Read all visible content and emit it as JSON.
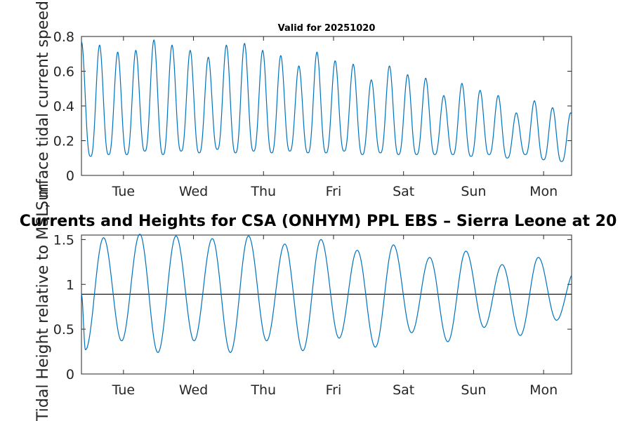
{
  "chart_data": [
    {
      "type": "line",
      "title": "Valid for 20251020",
      "xlabel": "",
      "ylabel": "Surface tidal current speed, kn",
      "x_range_days": [
        -0.6,
        6.4
      ],
      "ylim": [
        0,
        0.8
      ],
      "yticks": [
        "0",
        "0.2",
        "0.4",
        "0.6",
        "0.8"
      ],
      "xtick_labels": [
        "Tue",
        "Wed",
        "Thu",
        "Fri",
        "Sat",
        "Sun",
        "Mon"
      ],
      "series_color": "#0072BD",
      "series": [
        {
          "name": "Surface current speed",
          "period_days": 0.25875,
          "start_day": -0.6,
          "peaks": [
            0.77,
            0.75,
            0.71,
            0.72,
            0.78,
            0.75,
            0.72,
            0.68,
            0.75,
            0.76,
            0.72,
            0.69,
            0.63,
            0.71,
            0.66,
            0.64,
            0.55,
            0.63,
            0.58,
            0.56,
            0.46,
            0.53,
            0.49,
            0.46,
            0.36,
            0.43,
            0.39,
            0.36,
            0.26
          ],
          "troughs": [
            0.11,
            0.12,
            0.12,
            0.14,
            0.12,
            0.14,
            0.13,
            0.15,
            0.13,
            0.14,
            0.13,
            0.14,
            0.13,
            0.13,
            0.14,
            0.12,
            0.13,
            0.12,
            0.12,
            0.12,
            0.12,
            0.11,
            0.12,
            0.1,
            0.12,
            0.09,
            0.08,
            0.1,
            0.16
          ]
        }
      ]
    },
    {
      "type": "line",
      "title": "Currents and Heights for CSA (ONHYM) PPL EBS  – Sierra Leone at 20",
      "xlabel": "",
      "ylabel": "Tidal Height relative to MSL, m",
      "x_range_days": [
        -0.6,
        6.4
      ],
      "ylim": [
        0,
        1.55
      ],
      "yticks": [
        "0",
        "0.5",
        "1",
        "1.5"
      ],
      "xtick_labels": [
        "Tue",
        "Wed",
        "Thu",
        "Fri",
        "Sat",
        "Sun",
        "Mon"
      ],
      "reference_line": 0.89,
      "series_color": "#0072BD",
      "series": [
        {
          "name": "Tidal height",
          "period_days": 0.5175,
          "start_day": -0.6,
          "start_value": 0.89,
          "troughs": [
            0.27,
            0.37,
            0.24,
            0.37,
            0.24,
            0.37,
            0.26,
            0.4,
            0.3,
            0.46,
            0.36,
            0.52,
            0.43,
            0.6
          ],
          "peaks": [
            1.52,
            1.56,
            1.54,
            1.51,
            1.54,
            1.45,
            1.5,
            1.38,
            1.44,
            1.3,
            1.37,
            1.22,
            1.3,
            1.14
          ]
        }
      ]
    }
  ]
}
